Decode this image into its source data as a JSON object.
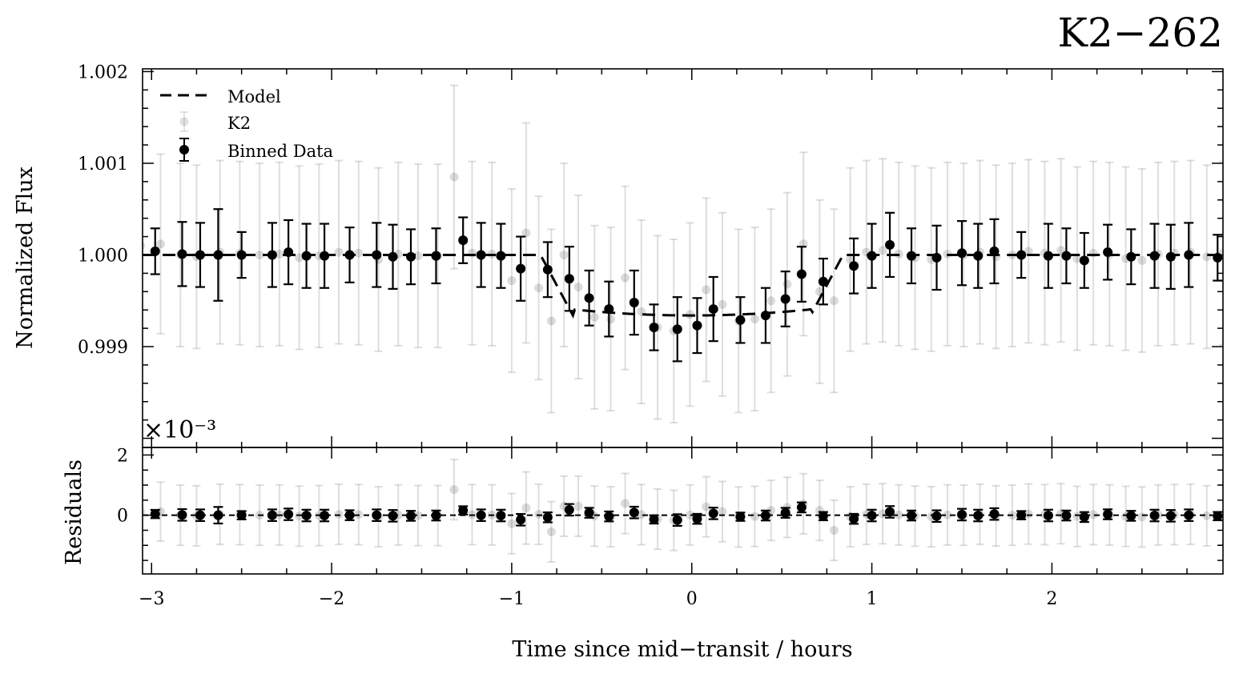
{
  "chart_data": {
    "type": "scatter",
    "title": "K2−262",
    "xlabel": "Time since mid−transit / hours",
    "xlim": [
      -3.05,
      2.95
    ],
    "x_ticks": [
      {
        "value": -3,
        "label": "−3"
      },
      {
        "value": -2,
        "label": "−2"
      },
      {
        "value": -1,
        "label": "−1"
      },
      {
        "value": 0,
        "label": "0"
      },
      {
        "value": 1,
        "label": "1"
      },
      {
        "value": 2,
        "label": "2"
      }
    ],
    "panels": [
      {
        "name": "flux",
        "ylabel": "Normalized Flux",
        "ylim": [
          0.9979,
          1.00203
        ],
        "y_ticks": [
          {
            "value": 0.999,
            "label": "0.999"
          },
          {
            "value": 1.0,
            "label": "1.000"
          },
          {
            "value": 1.001,
            "label": "1.001"
          },
          {
            "value": 1.002,
            "label": "1.002"
          }
        ],
        "grid": false
      },
      {
        "name": "residuals",
        "ylabel": "Residuals",
        "ylim": [
          -1.95,
          2.25
        ],
        "scale_label": "×10⁻³",
        "y_ticks": [
          {
            "value": 0,
            "label": "0"
          },
          {
            "value": 2,
            "label": "2"
          }
        ],
        "grid": false
      }
    ],
    "legend": {
      "placement": "upper-left",
      "entries": [
        {
          "label": "Model",
          "style": "dashed-line"
        },
        {
          "label": "K2",
          "style": "faint-marker"
        },
        {
          "label": "Binned Data",
          "style": "errorbar-marker"
        }
      ]
    },
    "model": {
      "name": "Model",
      "baseline": 1.0,
      "depth": 0.00066,
      "ingress_start": -0.84,
      "ingress_end": -0.66,
      "egress_start": 0.66,
      "egress_end": 0.84
    },
    "binned": {
      "name": "Binned Data",
      "x": [
        -2.98,
        -2.83,
        -2.73,
        -2.63,
        -2.5,
        -2.33,
        -2.24,
        -2.14,
        -2.04,
        -1.9,
        -1.75,
        -1.66,
        -1.56,
        -1.42,
        -1.27,
        -1.17,
        -1.06,
        -0.95,
        -0.8,
        -0.68,
        -0.57,
        -0.46,
        -0.32,
        -0.21,
        -0.08,
        0.03,
        0.12,
        0.27,
        0.41,
        0.52,
        0.61,
        0.73,
        0.9,
        1.0,
        1.1,
        1.22,
        1.36,
        1.5,
        1.59,
        1.68,
        1.83,
        1.98,
        2.08,
        2.18,
        2.31,
        2.44,
        2.57,
        2.66,
        2.76,
        2.92
      ],
      "y": [
        1.00004,
        1.00001,
        1.0,
        1.0,
        1.0,
        1.0,
        1.00003,
        0.99999,
        0.99999,
        1.0,
        1.0,
        0.99998,
        0.99998,
        0.99999,
        1.00016,
        1.0,
        0.99999,
        0.99985,
        0.99984,
        0.99974,
        0.99953,
        0.99941,
        0.99948,
        0.99921,
        0.99919,
        0.99923,
        0.99941,
        0.99929,
        0.99934,
        0.99952,
        0.99979,
        0.99971,
        0.99988,
        0.99999,
        1.00011,
        0.99999,
        0.99997,
        1.00002,
        0.99999,
        1.00004,
        1.0,
        0.99999,
        0.99999,
        0.99994,
        1.00003,
        0.99998,
        0.99999,
        0.99998,
        1.0,
        0.99997
      ],
      "yerr": [
        0.00025,
        0.00035,
        0.00035,
        0.0005,
        0.00025,
        0.00035,
        0.00035,
        0.00035,
        0.00035,
        0.0003,
        0.00035,
        0.00035,
        0.0003,
        0.0003,
        0.00025,
        0.00035,
        0.00035,
        0.00035,
        0.0003,
        0.00035,
        0.0003,
        0.0003,
        0.00035,
        0.00025,
        0.00035,
        0.0003,
        0.00035,
        0.00025,
        0.0003,
        0.0003,
        0.0003,
        0.00025,
        0.0003,
        0.00035,
        0.00035,
        0.0003,
        0.00035,
        0.00035,
        0.00035,
        0.00035,
        0.00025,
        0.00035,
        0.0003,
        0.0003,
        0.0003,
        0.0003,
        0.00035,
        0.00035,
        0.00035,
        0.00025
      ],
      "resid": [
        0.04,
        0.01,
        0.0,
        0.0,
        0.0,
        0.0,
        0.03,
        -0.01,
        -0.01,
        0.0,
        0.0,
        -0.02,
        -0.02,
        -0.01,
        0.16,
        0.0,
        -0.01,
        -0.15,
        -0.07,
        0.18,
        0.08,
        -0.04,
        0.09,
        -0.14,
        -0.16,
        -0.12,
        0.06,
        -0.05,
        -0.01,
        0.08,
        0.26,
        -0.03,
        -0.12,
        -0.01,
        0.11,
        -0.01,
        -0.03,
        0.02,
        -0.01,
        0.04,
        0.0,
        -0.01,
        -0.01,
        -0.06,
        0.03,
        -0.02,
        -0.01,
        -0.02,
        0.0,
        -0.03
      ]
    },
    "raw": {
      "name": "K2",
      "x": [
        -3.06,
        -2.95,
        -2.84,
        -2.75,
        -2.62,
        -2.51,
        -2.4,
        -2.29,
        -2.18,
        -2.07,
        -1.96,
        -1.85,
        -1.74,
        -1.63,
        -1.52,
        -1.41,
        -1.32,
        -1.22,
        -1.11,
        -1.0,
        -0.92,
        -0.85,
        -0.78,
        -0.71,
        -0.63,
        -0.54,
        -0.45,
        -0.37,
        -0.28,
        -0.19,
        -0.1,
        -0.01,
        0.08,
        0.17,
        0.26,
        0.35,
        0.44,
        0.53,
        0.62,
        0.71,
        0.79,
        0.88,
        0.97,
        1.06,
        1.15,
        1.24,
        1.33,
        1.42,
        1.51,
        1.6,
        1.69,
        1.78,
        1.87,
        1.96,
        2.05,
        2.14,
        2.23,
        2.32,
        2.41,
        2.5,
        2.59,
        2.68,
        2.77,
        2.86,
        2.95
      ],
      "y": [
        1.0001,
        1.00012,
        1.0,
        0.99998,
        1.00003,
        1.00002,
        1.0,
        1.00001,
        0.99997,
        0.99999,
        1.00003,
        1.00002,
        0.99995,
        1.00001,
        0.99999,
        0.99999,
        1.00085,
        1.00002,
        1.00001,
        0.99972,
        1.00024,
        0.99964,
        0.99928,
        1.0,
        0.99965,
        0.99932,
        0.9993,
        0.99975,
        0.99938,
        0.99921,
        0.99917,
        0.99935,
        0.99962,
        0.99946,
        0.99928,
        0.9993,
        0.9995,
        0.99968,
        1.00012,
        0.9996,
        0.9995,
        0.99995,
        1.00003,
        1.00005,
        1.00001,
        0.99997,
        0.99995,
        1.00001,
        1.0,
        1.00003,
        0.99998,
        1.0,
        1.00004,
        1.00002,
        1.00005,
        0.99996,
        1.00002,
        1.00001,
        0.99996,
        0.99994,
        1.00001,
        1.00002,
        1.00003,
        0.99998,
        1.00002
      ],
      "yerr": [
        0.0009,
        0.00098,
        0.001,
        0.001,
        0.001,
        0.001,
        0.001,
        0.001,
        0.001,
        0.001,
        0.001,
        0.001,
        0.001,
        0.001,
        0.001,
        0.001,
        0.001,
        0.001,
        0.001,
        0.001,
        0.0012,
        0.001,
        0.001,
        0.001,
        0.001,
        0.001,
        0.001,
        0.001,
        0.001,
        0.001,
        0.001,
        0.001,
        0.001,
        0.001,
        0.001,
        0.001,
        0.001,
        0.001,
        0.001,
        0.001,
        0.001,
        0.001,
        0.001,
        0.001,
        0.001,
        0.001,
        0.001,
        0.001,
        0.001,
        0.001,
        0.001,
        0.001,
        0.001,
        0.001,
        0.001,
        0.001,
        0.001,
        0.001,
        0.001,
        0.001,
        0.001,
        0.001,
        0.001,
        0.001,
        0.001
      ],
      "resid": [
        0.1,
        0.12,
        0.0,
        -0.02,
        0.03,
        0.02,
        0.0,
        0.01,
        -0.03,
        -0.01,
        0.03,
        0.02,
        -0.05,
        0.01,
        -0.01,
        -0.01,
        0.85,
        0.02,
        0.01,
        -0.28,
        0.24,
        0.03,
        -0.55,
        0.3,
        0.3,
        -0.03,
        -0.05,
        0.39,
        0.02,
        -0.13,
        -0.17,
        0.01,
        0.28,
        0.12,
        -0.06,
        -0.04,
        0.16,
        0.26,
        0.38,
        0.16,
        -0.5,
        -0.05,
        0.03,
        0.05,
        0.01,
        -0.03,
        -0.05,
        0.01,
        0.0,
        0.03,
        -0.02,
        0.0,
        0.04,
        0.02,
        0.05,
        -0.04,
        0.02,
        0.01,
        -0.04,
        -0.06,
        0.01,
        0.02,
        0.03,
        -0.02,
        0.02
      ]
    }
  }
}
